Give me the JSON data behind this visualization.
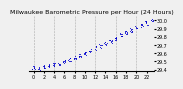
{
  "title": "Milwaukee Barometric Pressure per Hour (24 Hours)",
  "background_color": "#f0f0f0",
  "plot_bg_color": "#f0f0f0",
  "grid_color": "#aaaaaa",
  "dot_color": "#0000cc",
  "hours": [
    0,
    1,
    2,
    3,
    4,
    5,
    6,
    7,
    8,
    9,
    10,
    11,
    12,
    13,
    14,
    15,
    16,
    17,
    18,
    19,
    20,
    21,
    22,
    23
  ],
  "pressure_base": [
    29.42,
    29.41,
    29.43,
    29.44,
    29.46,
    29.47,
    29.5,
    29.52,
    29.54,
    29.57,
    29.6,
    29.63,
    29.66,
    29.69,
    29.72,
    29.75,
    29.78,
    29.82,
    29.85,
    29.88,
    29.91,
    29.94,
    29.97,
    30.0
  ],
  "ylim": [
    29.38,
    30.06
  ],
  "ytick_values": [
    29.4,
    29.5,
    29.6,
    29.7,
    29.8,
    29.9,
    30.0
  ],
  "ytick_labels": [
    "29.4",
    "29.5",
    "29.6",
    "29.7",
    "29.8",
    "29.9",
    "30.0"
  ],
  "xtick_values": [
    0,
    2,
    4,
    6,
    8,
    10,
    12,
    14,
    16,
    18,
    20,
    22
  ],
  "xtick_labels": [
    "0",
    "2",
    "4",
    "6",
    "8",
    "10",
    "12",
    "14",
    "16",
    "18",
    "20",
    "22"
  ],
  "title_fontsize": 4.5,
  "tick_fontsize": 3.5,
  "marker_size": 1.2,
  "grid_xtick_positions": [
    0,
    4,
    8,
    12,
    16,
    20
  ]
}
